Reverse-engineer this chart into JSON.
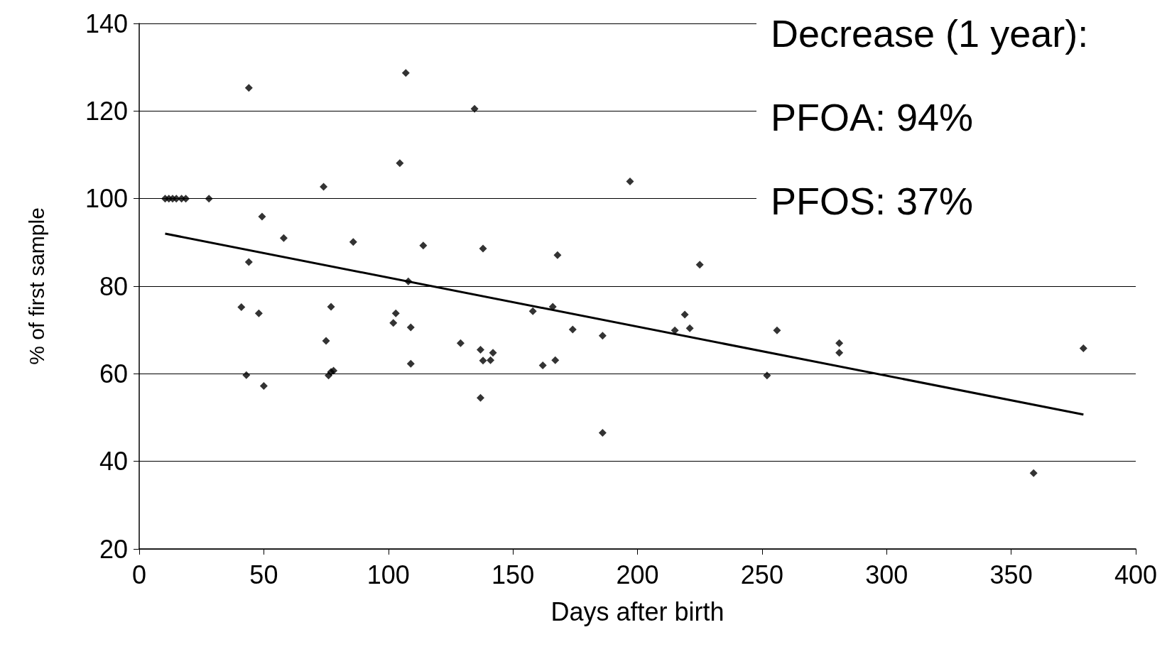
{
  "chart_data": {
    "type": "scatter",
    "xlabel": "Days after birth",
    "ylabel": "% of first sample",
    "annotations": [
      "Decrease (1 year):",
      "PFOA: 94%",
      "PFOS: 37%"
    ],
    "xlim": [
      0,
      400
    ],
    "xticks": [
      0,
      50,
      100,
      150,
      200,
      250,
      300,
      350,
      400
    ],
    "ylim": [
      20,
      140
    ],
    "yticks": [
      20,
      40,
      60,
      80,
      100,
      120,
      140
    ],
    "grid": "y",
    "marker": "diamond",
    "series": [
      {
        "color": "#000000",
        "x": [
          10.4,
          11.9,
          13.4,
          14.9,
          17,
          18.7,
          28,
          44,
          107,
          134.6,
          104.6,
          74,
          197,
          49.3,
          58,
          85.9,
          114,
          138,
          167.9,
          225,
          44,
          108,
          41,
          48,
          77,
          103,
          102,
          109,
          158,
          166,
          174,
          219,
          215,
          221,
          256,
          281,
          281,
          379,
          75,
          129,
          137,
          142,
          138,
          141,
          109,
          162,
          167,
          186,
          252,
          43,
          76,
          77,
          78,
          50,
          137,
          186,
          359
        ],
        "values": [
          100,
          100,
          100,
          100,
          100,
          100,
          100,
          125.3,
          128.7,
          120.5,
          108.1,
          102.7,
          103.9,
          95.9,
          91,
          90.1,
          89.3,
          88.6,
          87.1,
          84.9,
          85.5,
          81.1,
          75.2,
          73.8,
          75.3,
          73.8,
          71.6,
          70.6,
          74.3,
          75.3,
          70.1,
          73.5,
          69.9,
          70.4,
          69.9,
          67,
          64.8,
          65.8,
          67.5,
          67,
          65.5,
          64.8,
          63,
          63.1,
          62.3,
          61.9,
          63.1,
          68.7,
          59.6,
          59.7,
          59.6,
          60.4,
          60.7,
          57.2,
          54.5,
          46.5,
          37.3
        ]
      },
      {
        "type": "line",
        "color": "#000000",
        "x": [
          10.4,
          379
        ],
        "values": [
          92,
          50.7
        ],
        "marker": "none"
      }
    ]
  }
}
